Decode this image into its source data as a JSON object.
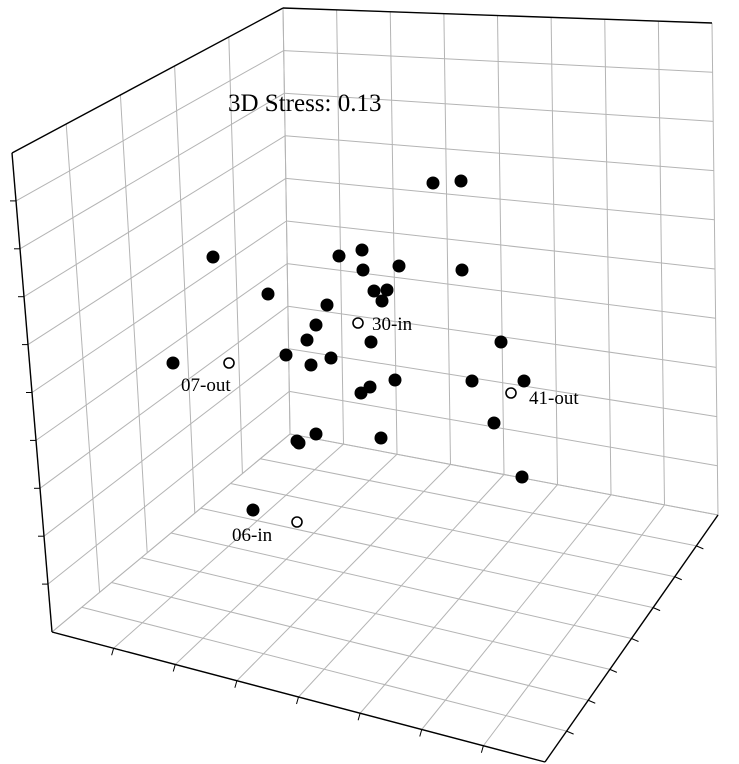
{
  "chart_data": {
    "type": "scatter",
    "subtitle": "3D Stress: 0.13",
    "axes": {
      "dimensions": 3,
      "tick_labels": "none",
      "grid": true,
      "box": "open 3D box with gridded back, left and floor panes"
    },
    "colors": {
      "filled": "#000000",
      "hollow_fill": "#ffffff",
      "grid": "#b4b4b4",
      "axis": "#000000"
    },
    "series": [
      {
        "marker": "filled-circle",
        "labels": []
      },
      {
        "marker": "hollow-circle",
        "labels": [
          "30-in",
          "07-out",
          "41-out",
          "06-in"
        ]
      }
    ]
  }
}
